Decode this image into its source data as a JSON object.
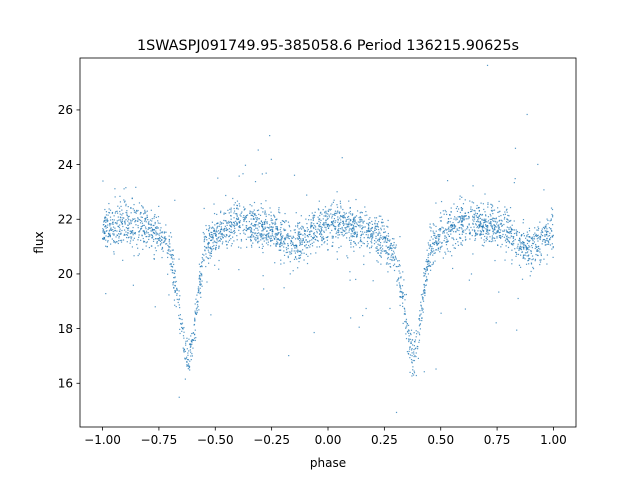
{
  "chart_data": {
    "type": "scatter",
    "title": "1SWASPJ091749.95-385058.6 Period 136215.90625s",
    "xlabel": "phase",
    "ylabel": "flux",
    "xlim": [
      -1.1,
      1.1
    ],
    "ylim": [
      14.4,
      27.9
    ],
    "xticks": [
      -1.0,
      -0.75,
      -0.5,
      -0.25,
      0.0,
      0.25,
      0.5,
      0.75,
      1.0
    ],
    "xtick_labels": [
      "−1.00",
      "−0.75",
      "−0.50",
      "−0.25",
      "0.00",
      "0.25",
      "0.50",
      "0.75",
      "1.00"
    ],
    "yticks": [
      16,
      18,
      20,
      22,
      24,
      26
    ],
    "ytick_labels": [
      "16",
      "18",
      "20",
      "22",
      "24",
      "26"
    ],
    "grid": false,
    "legend": "none",
    "point_color": "#1f77b4",
    "curve": {
      "x": [
        -1.0,
        -0.9,
        -0.8,
        -0.75,
        -0.7,
        -0.66,
        -0.64,
        -0.62,
        -0.6,
        -0.58,
        -0.55,
        -0.5,
        -0.4,
        -0.3,
        -0.25,
        -0.2,
        -0.15,
        -0.1,
        -0.05,
        0.0,
        0.05,
        0.1,
        0.2,
        0.25,
        0.3,
        0.34,
        0.36,
        0.38,
        0.4,
        0.42,
        0.45,
        0.5,
        0.6,
        0.7,
        0.75,
        0.8,
        0.85,
        0.9,
        0.95,
        1.0
      ],
      "y": [
        21.6,
        21.9,
        21.7,
        21.5,
        20.8,
        18.8,
        17.5,
        16.8,
        17.6,
        19.0,
        20.9,
        21.4,
        21.9,
        21.7,
        21.6,
        21.3,
        21.0,
        21.4,
        21.7,
        21.8,
        21.9,
        21.7,
        21.5,
        21.2,
        20.6,
        18.7,
        17.5,
        16.9,
        17.6,
        19.1,
        20.9,
        21.4,
        21.9,
        21.8,
        21.7,
        21.5,
        21.1,
        20.9,
        21.3,
        21.6
      ]
    }
  }
}
